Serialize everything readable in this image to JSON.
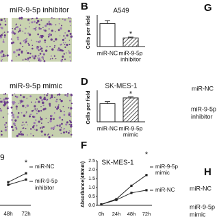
{
  "left_images": {
    "top_label": "miR-9-5p inhibitor",
    "bottom_label": "miR-9-5p mimic"
  },
  "panel_b": {
    "letter": "B",
    "title": "A549",
    "y_label": "Cells per field",
    "ylim": [
      0,
      200
    ],
    "annotation": "*",
    "bars": [
      {
        "label_lines": [
          "miR-NC"
        ],
        "value": 160,
        "error": 20,
        "hatched": false
      },
      {
        "label_lines": [
          "miR-9-5p",
          "inhibitor"
        ],
        "value": 60,
        "error": 6,
        "hatched": true
      }
    ]
  },
  "panel_d": {
    "letter": "D",
    "title": "SK-MES-1",
    "y_label": "Cells per field",
    "ylim": [
      0,
      300
    ],
    "annotation": "*",
    "bars": [
      {
        "label_lines": [
          "miR-NC"
        ],
        "value": 190,
        "error": 20,
        "hatched": false
      },
      {
        "label_lines": [
          "miR-9-5p",
          "mimic"
        ],
        "value": 250,
        "error": 10,
        "hatched": true
      }
    ]
  },
  "panel_e": {
    "letter_fragment": "9",
    "annotation": "*",
    "categories": [
      "48h",
      "72h"
    ],
    "ylim": [
      0,
      2.5
    ],
    "series": [
      {
        "label_lines": [
          "miR-NC"
        ],
        "values": [
          1.3,
          1.8
        ]
      },
      {
        "label_lines": [
          "miR-9-5p",
          "inhibitor"
        ],
        "values": [
          1.15,
          1.45
        ]
      }
    ]
  },
  "panel_f": {
    "letter": "F",
    "title": "SK-MES-1",
    "y_label": "Absorbance(490nm)",
    "annotation": "*",
    "categories": [
      "0h",
      "24h",
      "48h",
      "72h"
    ],
    "ylim": [
      0,
      2.5
    ],
    "yticks": [
      {
        "value": 0,
        "label": "0.0"
      },
      0.5,
      {
        "value": 1,
        "label": "1.0"
      },
      1.5,
      {
        "value": 2,
        "label": "2.0"
      },
      2.5
    ],
    "series": [
      {
        "label_lines": [
          "miR-9-5p",
          "mimic"
        ],
        "values": [
          0.05,
          0.35,
          1.1,
          1.7
        ]
      },
      {
        "label_lines": [
          "miR-NC"
        ],
        "values": [
          0.05,
          0.3,
          0.7,
          0.85
        ]
      }
    ]
  },
  "right_column": {
    "letter_g": "G",
    "g_labels": [
      [
        "miR-NC"
      ],
      [
        "miR-9-5p",
        "inhibitor"
      ]
    ],
    "letter_h": "H",
    "h_labels": [
      [
        "miR-NC"
      ],
      [
        "miR-9-5p",
        "mimic"
      ]
    ]
  }
}
